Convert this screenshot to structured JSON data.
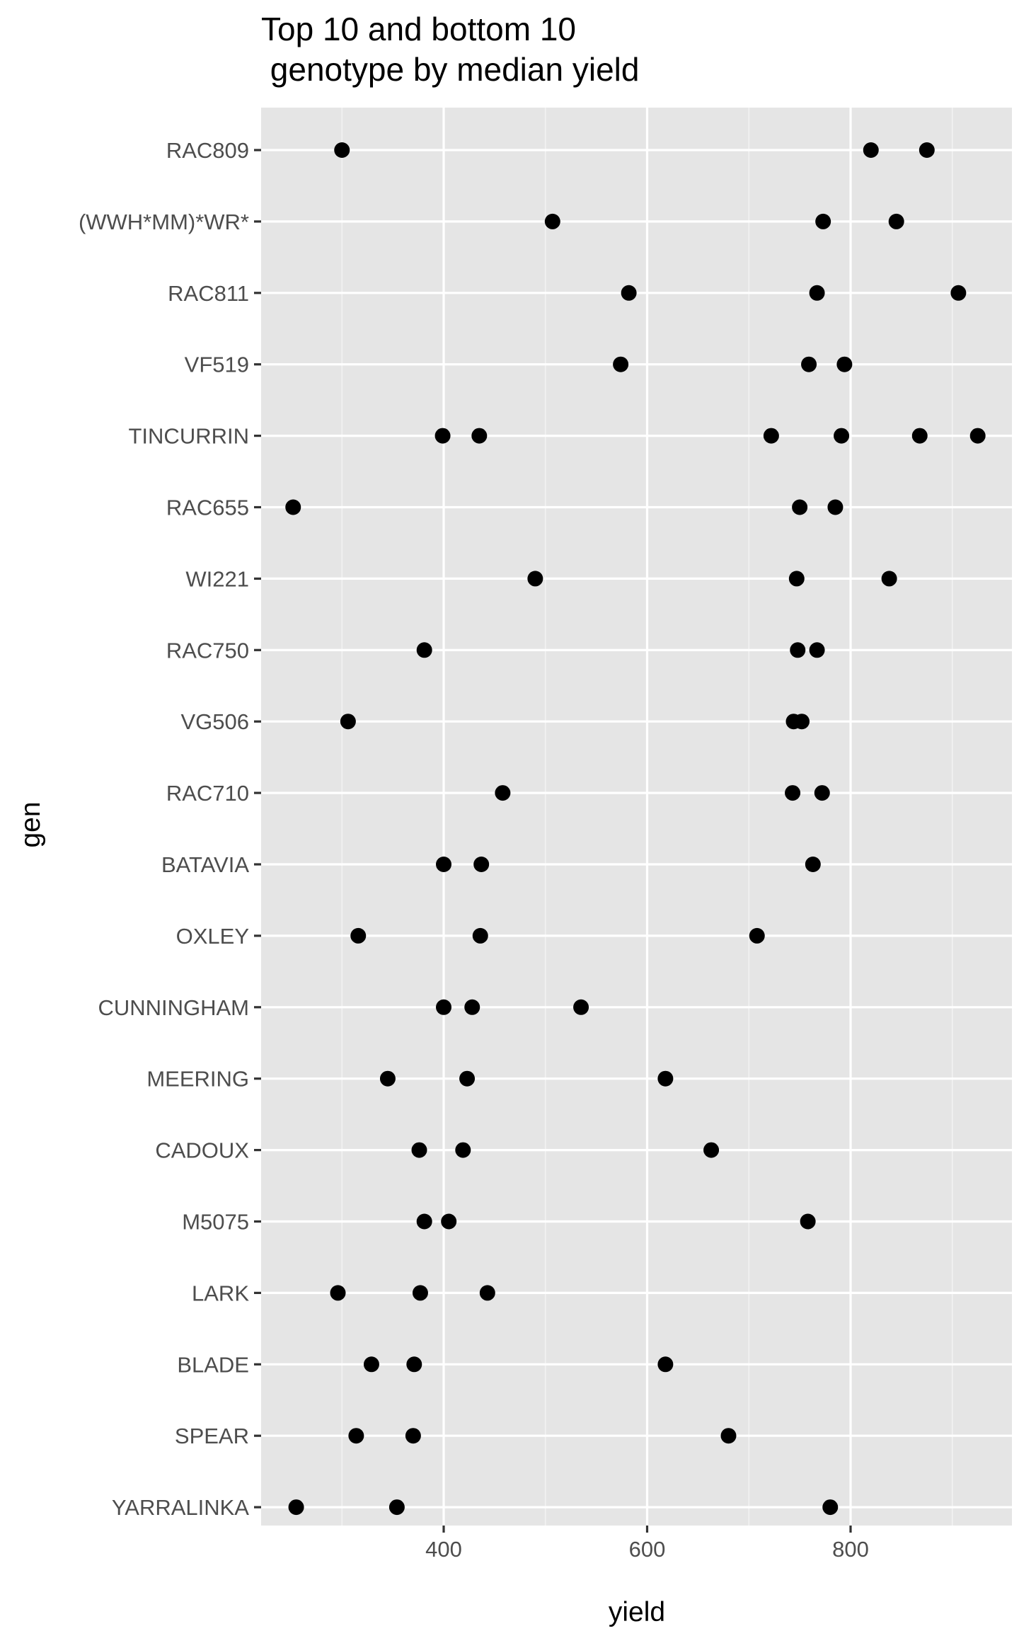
{
  "chart_data": {
    "type": "scatter",
    "title": [
      "Top 10 and bottom 10",
      " genotype by median yield"
    ],
    "xlabel": "yield",
    "ylabel": "gen",
    "xlim": [
      220,
      940
    ],
    "x_ticks": [
      400,
      600,
      800
    ],
    "grid": true,
    "categories": [
      "RAC809",
      "(WWH*MM)*WR*",
      "RAC811",
      "VF519",
      "TINCURRIN",
      "RAC655",
      "WI221",
      "RAC750",
      "VG506",
      "RAC710",
      "BATAVIA",
      "OXLEY",
      "CUNNINGHAM",
      "MEERING",
      "CADOUX",
      "M5075",
      "LARK",
      "BLADE",
      "SPEAR",
      "YARRALINKA"
    ],
    "points": [
      {
        "gen": "RAC809",
        "yield": [
          300,
          820,
          875
        ]
      },
      {
        "gen": "(WWH*MM)*WR*",
        "yield": [
          507,
          773,
          845
        ]
      },
      {
        "gen": "RAC811",
        "yield": [
          582,
          767,
          906
        ]
      },
      {
        "gen": "VF519",
        "yield": [
          574,
          759,
          794
        ]
      },
      {
        "gen": "TINCURRIN",
        "yield": [
          399,
          435,
          722,
          791,
          868,
          925
        ]
      },
      {
        "gen": "RAC655",
        "yield": [
          252,
          750,
          785
        ]
      },
      {
        "gen": "WI221",
        "yield": [
          490,
          747,
          838
        ]
      },
      {
        "gen": "RAC750",
        "yield": [
          381,
          748,
          767
        ]
      },
      {
        "gen": "VG506",
        "yield": [
          306,
          744,
          752
        ]
      },
      {
        "gen": "RAC710",
        "yield": [
          458,
          743,
          772
        ]
      },
      {
        "gen": "BATAVIA",
        "yield": [
          400,
          437,
          763
        ]
      },
      {
        "gen": "OXLEY",
        "yield": [
          316,
          436,
          708
        ]
      },
      {
        "gen": "CUNNINGHAM",
        "yield": [
          400,
          428,
          535
        ]
      },
      {
        "gen": "MEERING",
        "yield": [
          345,
          423,
          618
        ]
      },
      {
        "gen": "CADOUX",
        "yield": [
          376,
          419,
          663
        ]
      },
      {
        "gen": "M5075",
        "yield": [
          381,
          405,
          758
        ]
      },
      {
        "gen": "LARK",
        "yield": [
          296,
          377,
          443
        ]
      },
      {
        "gen": "BLADE",
        "yield": [
          329,
          371,
          618
        ]
      },
      {
        "gen": "SPEAR",
        "yield": [
          314,
          370,
          680
        ]
      },
      {
        "gen": "YARRALINKA",
        "yield": [
          255,
          354,
          780
        ]
      }
    ]
  }
}
